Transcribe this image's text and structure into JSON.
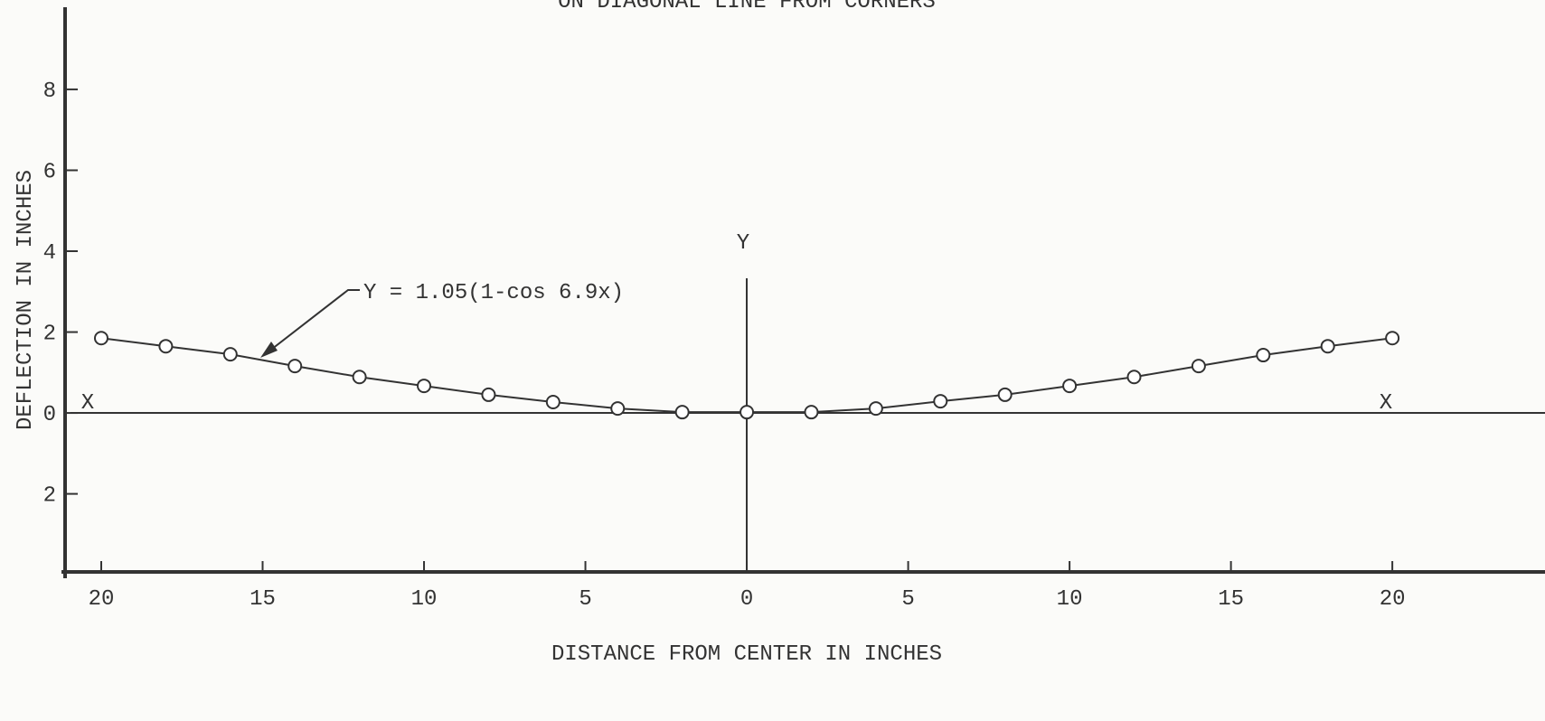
{
  "chart_data": {
    "type": "line",
    "title": "ON DIAGONAL LINE FROM CORNERS",
    "x_label": "DISTANCE FROM CENTER IN INCHES",
    "y_label": "DEFLECTION IN INCHES",
    "annotations": {
      "formula": "Y = 1.05(1-cos 6.9x)",
      "x_left": "X",
      "x_right": "X",
      "y_axis": "Y"
    },
    "x": [
      -20,
      -18,
      -16,
      -14,
      -12,
      -10,
      -8,
      -6,
      -4,
      -2,
      0,
      2,
      4,
      6,
      8,
      10,
      12,
      14,
      16,
      18,
      20
    ],
    "values": [
      1.85,
      1.65,
      1.45,
      1.16,
      0.89,
      0.67,
      0.45,
      0.27,
      0.11,
      0.02,
      0.02,
      0.02,
      0.11,
      0.29,
      0.45,
      0.67,
      0.89,
      1.16,
      1.43,
      1.65,
      1.85
    ],
    "color": "#333333",
    "xlim": [
      -21.12,
      24.73
    ],
    "ylim": [
      -3.93,
      10.21
    ],
    "xticks": [
      {
        "value": -20,
        "label": "20"
      },
      {
        "value": -15,
        "label": "15"
      },
      {
        "value": -10,
        "label": "10"
      },
      {
        "value": -5,
        "label": "5"
      },
      0,
      5,
      10,
      15,
      20
    ],
    "yticks": [
      {
        "value": -2,
        "label": "2"
      },
      0,
      2,
      4,
      6,
      8
    ]
  }
}
